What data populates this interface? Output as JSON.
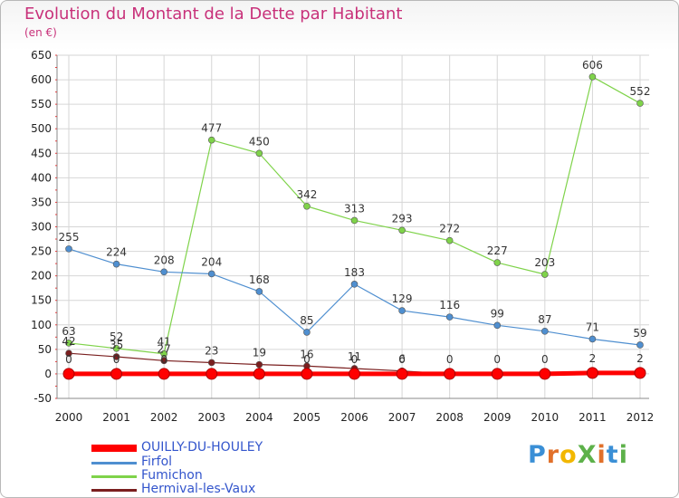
{
  "title": "Evolution du Montant de la Dette par Habitant",
  "subtitle": "(en €)",
  "logo": {
    "text": "ProXiti",
    "letters": [
      {
        "ch": "P",
        "color": "#3a8fd6"
      },
      {
        "ch": "r",
        "color": "#e1702a"
      },
      {
        "ch": "o",
        "color": "#f2b700"
      },
      {
        "ch": "X",
        "color": "#5db14a"
      },
      {
        "ch": "i",
        "color": "#e1702a"
      },
      {
        "ch": "t",
        "color": "#3a8fd6"
      },
      {
        "ch": "i",
        "color": "#5db14a"
      }
    ]
  },
  "chart_data": {
    "type": "line",
    "title": "Evolution du Montant de la Dette par Habitant",
    "ylabel": "(en €)",
    "xlabel": "",
    "categories": [
      "2000",
      "2001",
      "2002",
      "2003",
      "2004",
      "2005",
      "2006",
      "2007",
      "2008",
      "2009",
      "2010",
      "2011",
      "2012"
    ],
    "ylim": [
      -50,
      650
    ],
    "yticks": [
      -50,
      0,
      50,
      100,
      150,
      200,
      250,
      300,
      350,
      400,
      450,
      500,
      550,
      600,
      650
    ],
    "grid": true,
    "legend_position": "bottom-left",
    "series": [
      {
        "name": "OUILLY-DU-HOULEY",
        "color": "#ff0000",
        "values": [
          0,
          0,
          0,
          0,
          0,
          0,
          0,
          0,
          0,
          0,
          0,
          2,
          2
        ],
        "labels": [
          "0",
          "0",
          "0",
          "",
          "",
          "0",
          "0",
          "0",
          "0",
          "0",
          "0",
          "2",
          "2"
        ]
      },
      {
        "name": "Firfol",
        "color": "#4f8fd0",
        "values": [
          255,
          224,
          208,
          204,
          168,
          85,
          183,
          129,
          116,
          99,
          87,
          71,
          59
        ]
      },
      {
        "name": "Fumichon",
        "color": "#7fd34a",
        "values": [
          63,
          52,
          41,
          477,
          450,
          342,
          313,
          293,
          272,
          227,
          203,
          606,
          552
        ]
      },
      {
        "name": "Hermival-les-Vaux",
        "color": "#7a1f1f",
        "values": [
          42,
          35,
          27,
          23,
          19,
          16,
          11,
          6,
          0,
          0,
          0,
          0,
          0
        ],
        "labels": [
          "42",
          "35",
          "27",
          "23",
          "19",
          "16",
          "11",
          "6",
          "",
          "",
          "",
          "",
          ""
        ]
      }
    ]
  }
}
